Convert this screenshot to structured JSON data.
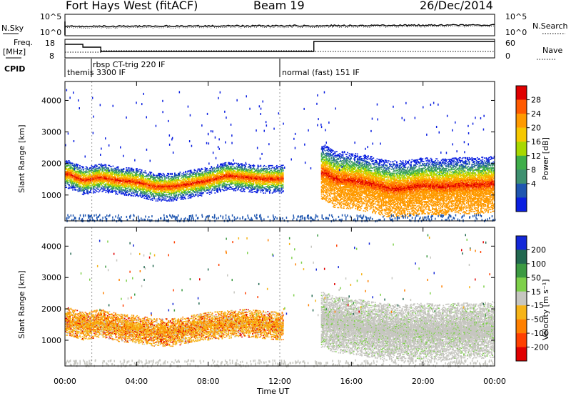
{
  "header": {
    "title": "Fort Hays West (fitACF)",
    "beam": "Beam 19",
    "date": "26/Dec/2014"
  },
  "aux_panels": {
    "nsky_label": "N.Sky",
    "nsearch_label": "N.Search",
    "nsky_ticks": [
      "10^5",
      "10^0"
    ],
    "freq_label_top": "Freq.",
    "freq_label_unit": "[MHz]",
    "freq_ticks": [
      "18",
      "8"
    ],
    "nave_label": "Nave",
    "nave_ticks": [
      "60",
      "0"
    ],
    "cpid_label": "CPID",
    "cpid_segments": [
      {
        "label": "themis 3300 IF",
        "start_h": 0.0,
        "end_h": 1.5
      },
      {
        "label": "rbsp CT-trig 220 IF",
        "start_h": 1.5,
        "end_h": 12.0
      },
      {
        "label": "normal (fast) 151 IF",
        "start_h": 12.0,
        "end_h": 24.0
      }
    ]
  },
  "panels": {
    "power": {
      "ylabel": "Slant Range [km]",
      "colorbar_label": "Power [dB]",
      "colorbar_ticks": [
        "28",
        "24",
        "20",
        "16",
        "12",
        "8",
        "4"
      ],
      "colors": [
        "#e00000",
        "#ff5a00",
        "#ff9a00",
        "#f6c800",
        "#a8d800",
        "#3fae4a",
        "#3e9070",
        "#1f56b0",
        "#0a1fe0"
      ]
    },
    "velocity": {
      "ylabel": "Slant Range [km]",
      "colorbar_label": "Velocity [m s⁻¹]",
      "colorbar_ticks": [
        "200",
        "100",
        "50",
        "15",
        "-15",
        "-50",
        "-100",
        "-200"
      ],
      "colors": [
        "#1428d8",
        "#226850",
        "#3c9a42",
        "#7ed04a",
        "#c6c6c0",
        "#f6b418",
        "#ff8000",
        "#ff4000",
        "#e00000"
      ]
    }
  },
  "axes": {
    "xlabel": "Time UT",
    "xticks": [
      "00:00",
      "04:00",
      "08:00",
      "12:00",
      "16:00",
      "20:00",
      "00:00"
    ],
    "yticks": [
      "1000",
      "2000",
      "3000",
      "4000"
    ]
  },
  "chart_data": {
    "type": "heatmap",
    "title": "Fort Hays West (fitACF)",
    "xlabel": "Time UT",
    "ylabel": "Slant Range [km]",
    "xlim": [
      0,
      24
    ],
    "ylim": [
      180,
      4600
    ],
    "series": [
      {
        "name": "Power [dB]",
        "range": [
          0,
          30
        ],
        "center_km": [
          [
            0.2,
            1650
          ],
          [
            1.0,
            1450
          ],
          [
            2.0,
            1550
          ],
          [
            3.0,
            1450
          ],
          [
            4.0,
            1400
          ],
          [
            5.0,
            1250
          ],
          [
            6.0,
            1250
          ],
          [
            7.0,
            1350
          ],
          [
            8.0,
            1450
          ],
          [
            9.0,
            1600
          ],
          [
            10.0,
            1550
          ],
          [
            11.0,
            1500
          ],
          [
            12.0,
            1500
          ],
          [
            14.5,
            1700
          ],
          [
            15.0,
            1500
          ],
          [
            16.0,
            1450
          ],
          [
            17.0,
            1350
          ],
          [
            18.0,
            1200
          ],
          [
            19.0,
            1200
          ],
          [
            20.0,
            1300
          ],
          [
            21.0,
            1250
          ],
          [
            22.0,
            1300
          ],
          [
            23.0,
            1300
          ],
          [
            24.0,
            1350
          ]
        ],
        "peak_db": 28
      },
      {
        "name": "Velocity [m s⁻¹]",
        "range": [
          -250,
          250
        ],
        "center_km": [
          [
            0.2,
            1600
          ],
          [
            1.0,
            1450
          ],
          [
            2.0,
            1550
          ],
          [
            3.0,
            1400
          ],
          [
            4.0,
            1350
          ],
          [
            5.0,
            1250
          ],
          [
            6.0,
            1250
          ],
          [
            7.0,
            1350
          ],
          [
            8.0,
            1450
          ],
          [
            9.0,
            1500
          ],
          [
            10.0,
            1550
          ],
          [
            11.0,
            1500
          ],
          [
            12.0,
            1450
          ],
          [
            14.5,
            1650
          ],
          [
            15.0,
            1500
          ],
          [
            16.0,
            1450
          ],
          [
            17.0,
            1350
          ],
          [
            18.0,
            1250
          ],
          [
            19.0,
            1250
          ],
          [
            20.0,
            1300
          ],
          [
            21.0,
            1250
          ],
          [
            22.0,
            1300
          ],
          [
            23.0,
            1300
          ],
          [
            24.0,
            1350
          ]
        ],
        "typical_ms": -30
      }
    ]
  }
}
